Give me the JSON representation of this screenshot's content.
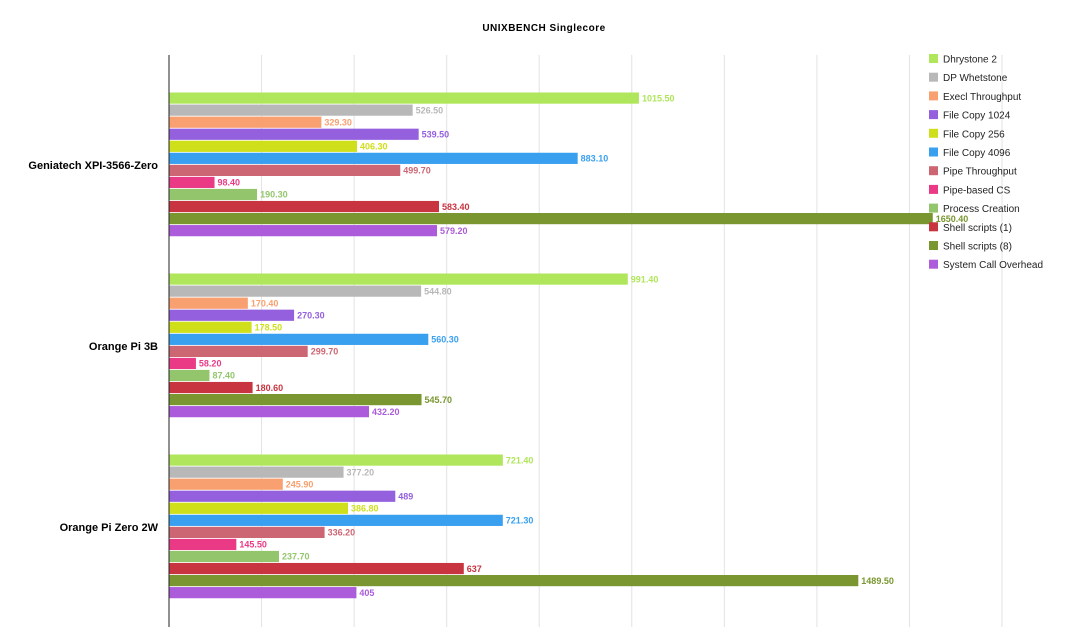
{
  "chart_data": {
    "type": "bar",
    "orientation": "horizontal",
    "title": "UNIXBENCH Singlecore",
    "categories": [
      "Geniatech XPI-3566-Zero",
      "Orange Pi 3B",
      "Orange Pi Zero 2W"
    ],
    "xlim": [
      0,
      1800
    ],
    "grid": true,
    "legend_position": "right",
    "series": [
      {
        "name": "Dhrystone 2",
        "color": "#b0e65c",
        "values": [
          1015.5,
          991.4,
          721.4
        ],
        "labels": [
          "1015.50",
          "991.40",
          "721.40"
        ]
      },
      {
        "name": "DP Whetstone",
        "color": "#b8b8b8",
        "values": [
          526.5,
          544.8,
          377.2
        ],
        "labels": [
          "526.50",
          "544.80",
          "377.20"
        ]
      },
      {
        "name": "Execl Throughput",
        "color": "#f8a070",
        "values": [
          329.3,
          170.4,
          245.9
        ],
        "labels": [
          "329.30",
          "170.40",
          "245.90"
        ]
      },
      {
        "name": "File Copy 1024",
        "color": "#9460de",
        "values": [
          539.5,
          270.3,
          489
        ],
        "labels": [
          "539.50",
          "270.30",
          "489"
        ]
      },
      {
        "name": "File Copy 256",
        "color": "#cfe01a",
        "values": [
          406.3,
          178.5,
          386.8
        ],
        "labels": [
          "406.30",
          "178.50",
          "386.80"
        ]
      },
      {
        "name": "File Copy 4096",
        "color": "#39a0f0",
        "values": [
          883.1,
          560.3,
          721.3
        ],
        "labels": [
          "883.10",
          "560.30",
          "721.30"
        ]
      },
      {
        "name": "Pipe Throughput",
        "color": "#cc6673",
        "values": [
          499.7,
          299.7,
          336.2
        ],
        "labels": [
          "499.70",
          "299.70",
          "336.20"
        ]
      },
      {
        "name": "Pipe-based CS",
        "color": "#ea3a86",
        "values": [
          98.4,
          58.2,
          145.5
        ],
        "labels": [
          "98.40",
          "58.20",
          "145.50"
        ]
      },
      {
        "name": "Process Creation",
        "color": "#93c66c",
        "values": [
          190.3,
          87.4,
          237.7
        ],
        "labels": [
          "190.30",
          "87.40",
          "237.70"
        ]
      },
      {
        "name": "Shell scripts (1)",
        "color": "#c8343f",
        "values": [
          583.4,
          180.6,
          637
        ],
        "labels": [
          "583.40",
          "180.60",
          "637"
        ]
      },
      {
        "name": "Shell scripts (8)",
        "color": "#7a9630",
        "values": [
          1650.4,
          545.7,
          1489.5
        ],
        "labels": [
          "1650.40",
          "545.70",
          "1489.50"
        ]
      },
      {
        "name": "System Call Overhead",
        "color": "#ac5cda",
        "values": [
          579.2,
          432.2,
          405
        ],
        "labels": [
          "579.20",
          "432.20",
          "405"
        ]
      }
    ]
  }
}
